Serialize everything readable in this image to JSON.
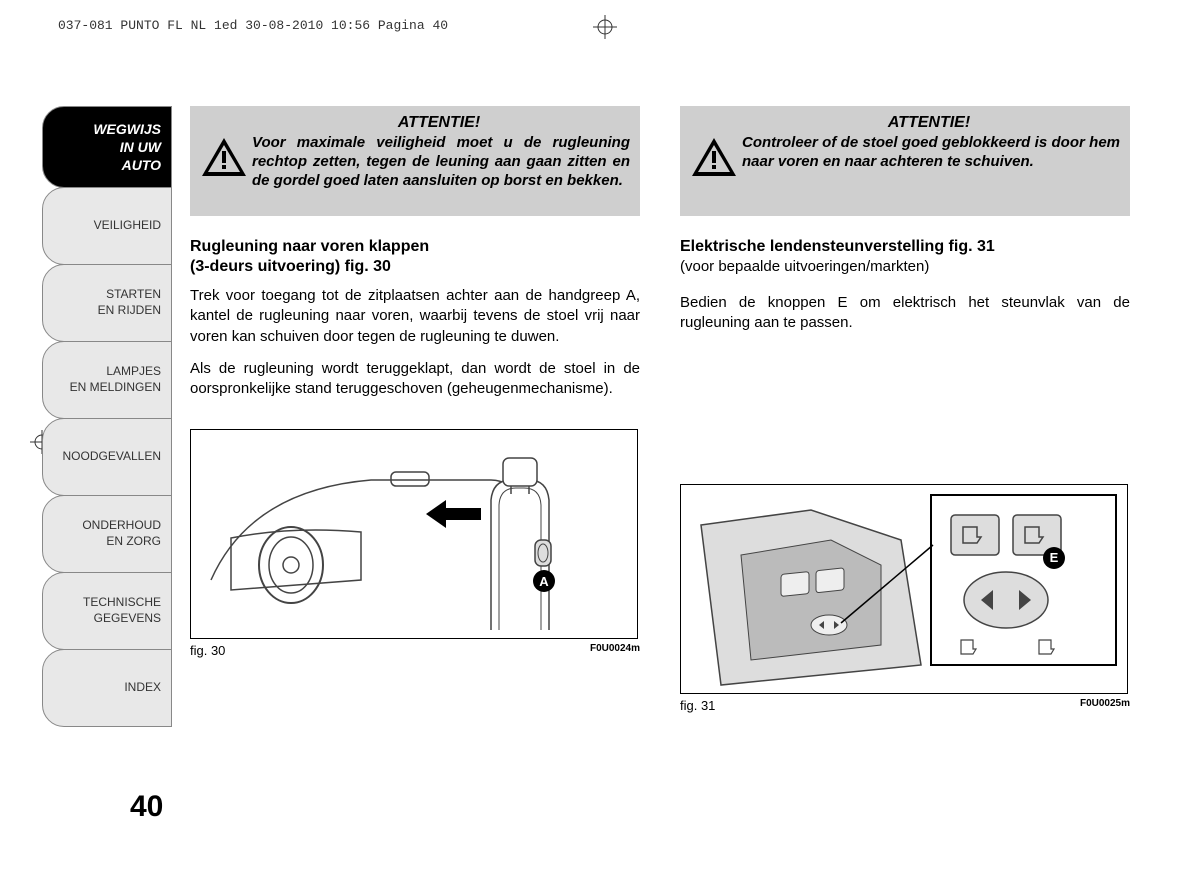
{
  "header": {
    "text": "037-081 PUNTO FL NL 1ed  30-08-2010  10:56  Pagina 40"
  },
  "sidebar": {
    "tabs": [
      {
        "lines": [
          "WEGWIJS",
          "IN UW",
          "AUTO"
        ],
        "active": true
      },
      {
        "lines": [
          "VEILIGHEID"
        ],
        "active": false
      },
      {
        "lines": [
          "STARTEN",
          "EN RIJDEN"
        ],
        "active": false
      },
      {
        "lines": [
          "LAMPJES",
          "EN MELDINGEN"
        ],
        "active": false
      },
      {
        "lines": [
          "NOODGEVALLEN"
        ],
        "active": false
      },
      {
        "lines": [
          "ONDERHOUD",
          "EN ZORG"
        ],
        "active": false
      },
      {
        "lines": [
          "TECHNISCHE",
          "GEGEVENS"
        ],
        "active": false
      },
      {
        "lines": [
          "INDEX"
        ],
        "active": false
      }
    ]
  },
  "pageNumber": "40",
  "leftColumn": {
    "warning": {
      "title": "ATTENTIE!",
      "text": "Voor maximale veiligheid moet u de rugleuning rechtop zetten, tegen de leuning aan gaan zitten en de gordel goed laten aansluiten op borst en bekken."
    },
    "sectionTitle": "Rugleuning naar voren klappen",
    "sectionSubtitle": "(3-deurs uitvoering) fig. 30",
    "para1": "Trek voor toegang tot de zitplaatsen achter aan de handgreep A, kantel de rugleuning naar voren, waarbij tevens de stoel vrij naar voren kan schuiven door tegen de rugleuning te duwen.",
    "para2": "Als de rugleuning wordt teruggeklapt, dan wordt de stoel in de oorspronkelijke stand teruggeschoven (geheugenmechanisme).",
    "figure": {
      "label": "fig. 30",
      "code": "F0U0024m",
      "callout": "A"
    }
  },
  "rightColumn": {
    "warning": {
      "title": "ATTENTIE!",
      "text": "Controleer of de stoel goed geblokkeerd is door hem naar voren en naar achteren te schuiven."
    },
    "sectionTitle": "Elektrische lendensteunverstelling fig. 31",
    "sectionSubtitle": "(voor bepaalde uitvoeringen/markten)",
    "para1": "Bedien de knoppen E om elektrisch het steunvlak van de rugleuning aan te passen.",
    "figure": {
      "label": "fig. 31",
      "code": "F0U0025m",
      "callout": "E"
    }
  }
}
